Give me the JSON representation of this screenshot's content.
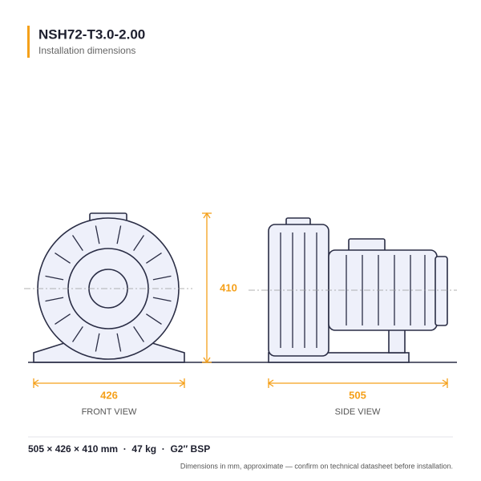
{
  "header": {
    "title": "NSH72-T3.0-2.00",
    "subtitle": "Installation dimensions"
  },
  "front_view": {
    "label": "FRONT VIEW",
    "width": 426,
    "height": 410
  },
  "side_view": {
    "label": "SIDE VIEW",
    "length": 505
  },
  "footer": {
    "specs": "505 × 426 × 410 mm  ·  47 kg  ·  G2″ BSP",
    "note": "Dimensions in mm, approximate — confirm on technical datasheet before installation."
  }
}
